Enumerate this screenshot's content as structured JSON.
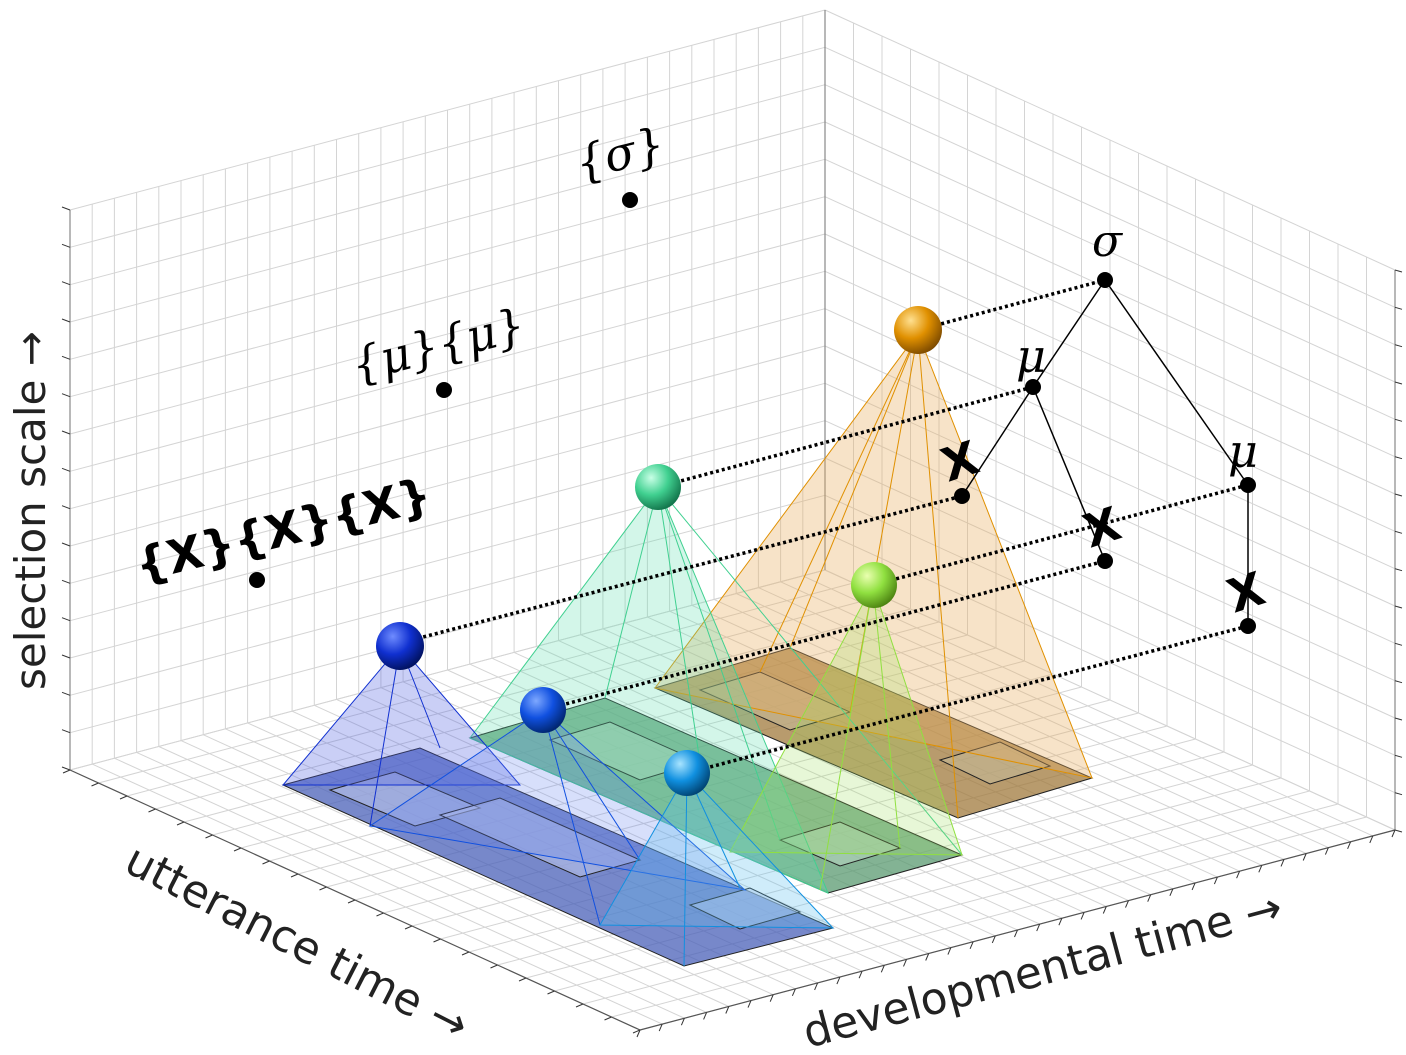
{
  "axes": {
    "y_label": "selection scale →",
    "x_label": "utterance time →",
    "z_label": "developmental time →"
  },
  "set_labels": {
    "x_set": "{X}{X}{X}",
    "mu_set": "{μ}{μ}",
    "sigma_set": "{σ}"
  },
  "tree": {
    "sigma": "σ",
    "mu_1": "μ",
    "mu_2": "μ",
    "x_1": "X",
    "x_2": "X",
    "x_3": "X"
  },
  "colors": {
    "blue_sphere": "#1030d0",
    "teal_sphere": "#40d090",
    "orange_sphere": "#e09000",
    "lime_sphere": "#90e040",
    "mid_blue_sphere": "#1050e0",
    "cyan_sphere": "#1090e0",
    "blue_pyramid": "#5060e0",
    "teal_pyramid": "#60e0b0",
    "orange_pyramid": "#e8b060",
    "lime_pyramid": "#a0e060",
    "cyan_pyramid": "#60c0f0"
  }
}
